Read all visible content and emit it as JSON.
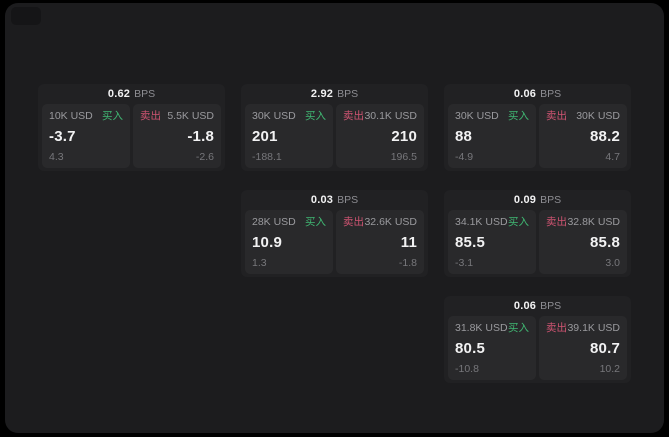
{
  "labels": {
    "buy": "买入",
    "sell": "卖出",
    "bps_suffix": "BPS"
  },
  "colors": {
    "buy_text": "#40b873",
    "sell_text": "#cf5472",
    "card_bg": "#212123",
    "tile_bg": "#29292b",
    "price_text": "#f2f2f3",
    "size_text": "#9a9a9e",
    "sub_text": "#77777b",
    "panel_bg": "#1c1c1e"
  },
  "cards": [
    {
      "bps": "0.62",
      "buy": {
        "size": "10K USD",
        "price": "-3.7",
        "change": "4.3"
      },
      "sell": {
        "size": "5.5K USD",
        "price": "-1.8",
        "change": "-2.6"
      }
    },
    {
      "bps": "2.92",
      "buy": {
        "size": "30K USD",
        "price": "201",
        "change": "-188.1"
      },
      "sell": {
        "size": "30.1K USD",
        "price": "210",
        "change": "196.5"
      }
    },
    {
      "bps": "0.06",
      "buy": {
        "size": "30K USD",
        "price": "88",
        "change": "-4.9"
      },
      "sell": {
        "size": "30K USD",
        "price": "88.2",
        "change": "4.7"
      }
    },
    {
      "bps": "0.03",
      "buy": {
        "size": "28K USD",
        "price": "10.9",
        "change": "1.3"
      },
      "sell": {
        "size": "32.6K USD",
        "price": "11",
        "change": "-1.8"
      }
    },
    {
      "bps": "0.09",
      "buy": {
        "size": "34.1K USD",
        "price": "85.5",
        "change": "-3.1"
      },
      "sell": {
        "size": "32.8K USD",
        "price": "85.8",
        "change": "3.0"
      }
    },
    {
      "bps": "0.06",
      "buy": {
        "size": "31.8K USD",
        "price": "80.5",
        "change": "-10.8"
      },
      "sell": {
        "size": "39.1K USD",
        "price": "80.7",
        "change": "10.2"
      }
    }
  ]
}
